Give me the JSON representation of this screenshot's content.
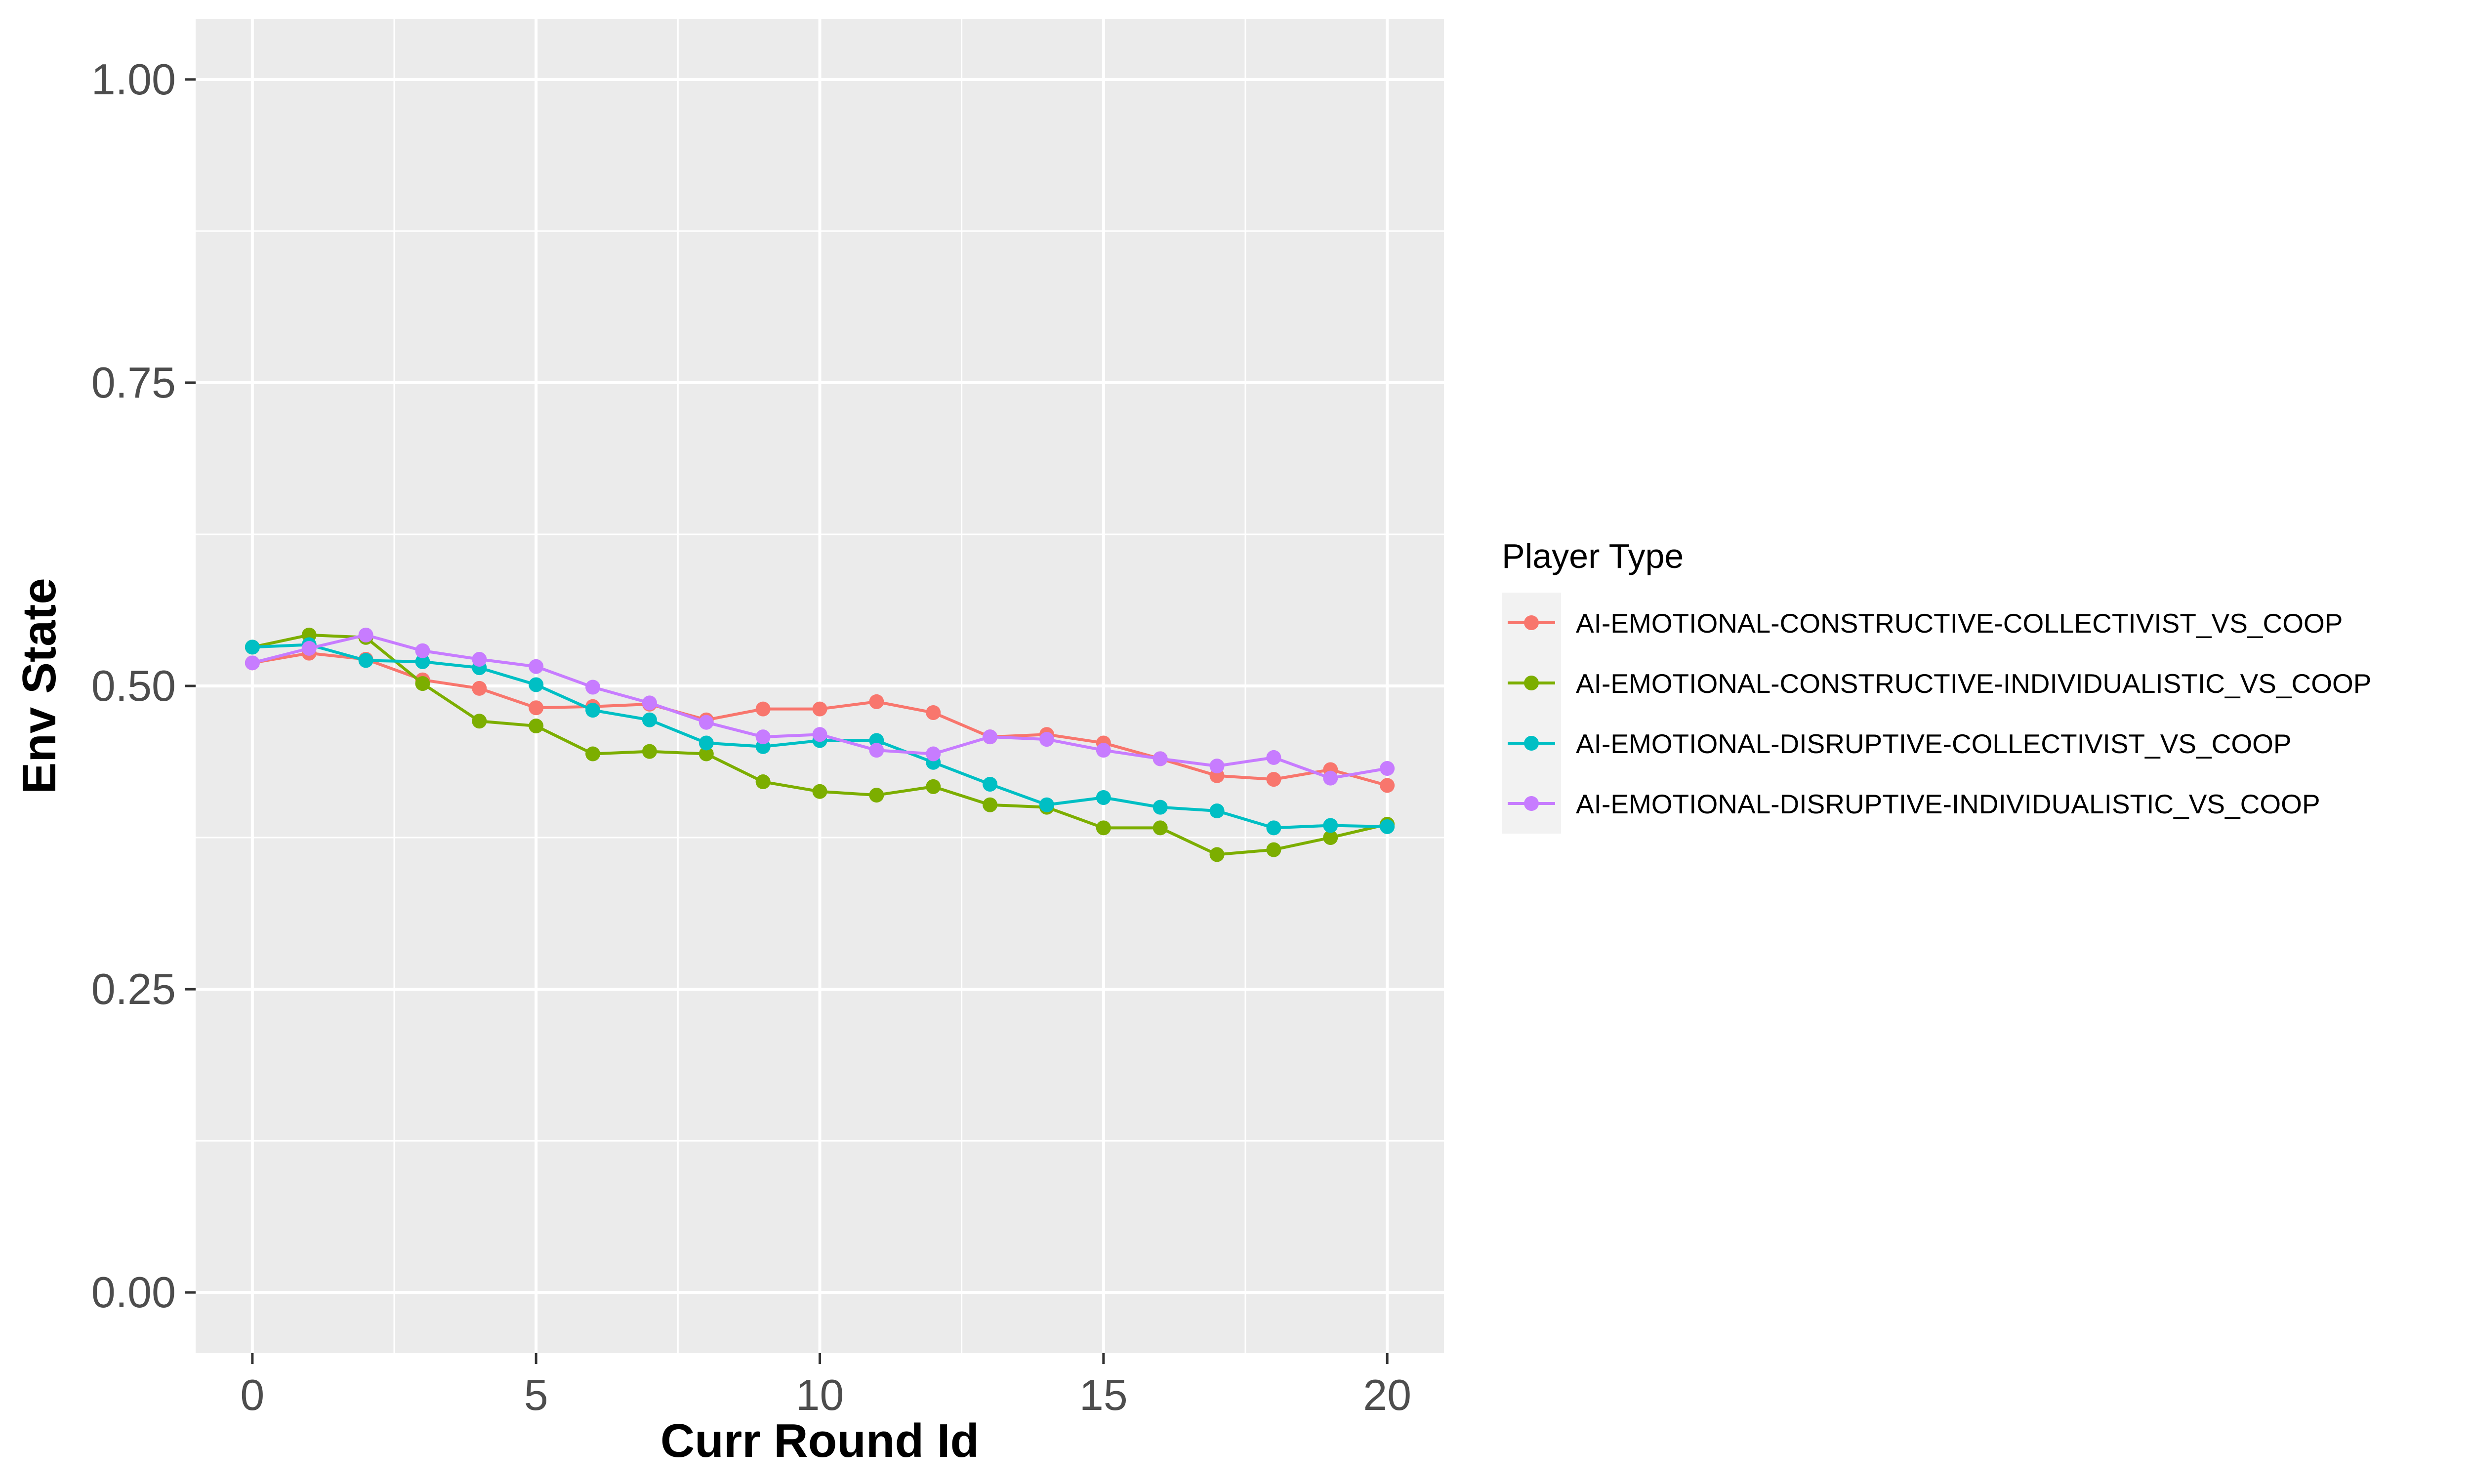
{
  "chart_data": {
    "type": "line",
    "title": "",
    "xlabel": "Curr Round Id",
    "ylabel": "Env State",
    "xlim": [
      -1,
      21
    ],
    "ylim": [
      -0.05,
      1.05
    ],
    "x_ticks": [
      0,
      5,
      10,
      15,
      20
    ],
    "x_tick_labels": [
      "0",
      "5",
      "10",
      "15",
      "20"
    ],
    "y_ticks": [
      0,
      0.25,
      0.5,
      0.75,
      1
    ],
    "y_tick_labels": [
      "0.00",
      "0.25",
      "0.50",
      "0.75",
      "1.00"
    ],
    "grid": true,
    "legend": {
      "title": "Player Type",
      "position": "right"
    },
    "x": [
      0,
      1,
      2,
      3,
      4,
      5,
      6,
      7,
      8,
      9,
      10,
      11,
      12,
      13,
      14,
      15,
      16,
      17,
      18,
      19,
      20
    ],
    "series": [
      {
        "name": "AI-EMOTIONAL-CONSTRUCTIVE-COLLECTIVIST_VS_COOP",
        "color": "#F8766D",
        "values": [
          0.519,
          0.527,
          0.522,
          0.505,
          0.498,
          0.482,
          0.483,
          0.485,
          0.472,
          0.481,
          0.481,
          0.487,
          0.478,
          0.458,
          0.46,
          0.453,
          0.44,
          0.426,
          0.423,
          0.431,
          0.418
        ]
      },
      {
        "name": "AI-EMOTIONAL-CONSTRUCTIVE-INDIVIDUALISTIC_VS_COOP",
        "color": "#7CAE00",
        "values": [
          0.532,
          0.542,
          0.54,
          0.502,
          0.471,
          0.467,
          0.444,
          0.446,
          0.444,
          0.421,
          0.413,
          0.41,
          0.417,
          0.402,
          0.4,
          0.383,
          0.383,
          0.361,
          0.365,
          0.375,
          0.386
        ]
      },
      {
        "name": "AI-EMOTIONAL-DISRUPTIVE-COLLECTIVIST_VS_COOP",
        "color": "#00BFC4",
        "values": [
          0.532,
          0.534,
          0.521,
          0.52,
          0.515,
          0.501,
          0.48,
          0.472,
          0.453,
          0.45,
          0.455,
          0.455,
          0.437,
          0.419,
          0.402,
          0.408,
          0.4,
          0.397,
          0.383,
          0.385,
          0.384
        ]
      },
      {
        "name": "AI-EMOTIONAL-DISRUPTIVE-INDIVIDUALISTIC_VS_COOP",
        "color": "#C77CFF",
        "values": [
          0.519,
          0.531,
          0.542,
          0.529,
          0.522,
          0.516,
          0.499,
          0.486,
          0.47,
          0.458,
          0.46,
          0.447,
          0.444,
          0.458,
          0.456,
          0.447,
          0.44,
          0.434,
          0.441,
          0.424,
          0.432
        ]
      }
    ]
  },
  "colors": {
    "panel_background": "#EBEBEB",
    "grid": "#FFFFFF",
    "legend_key_background": "#F2F2F2"
  }
}
